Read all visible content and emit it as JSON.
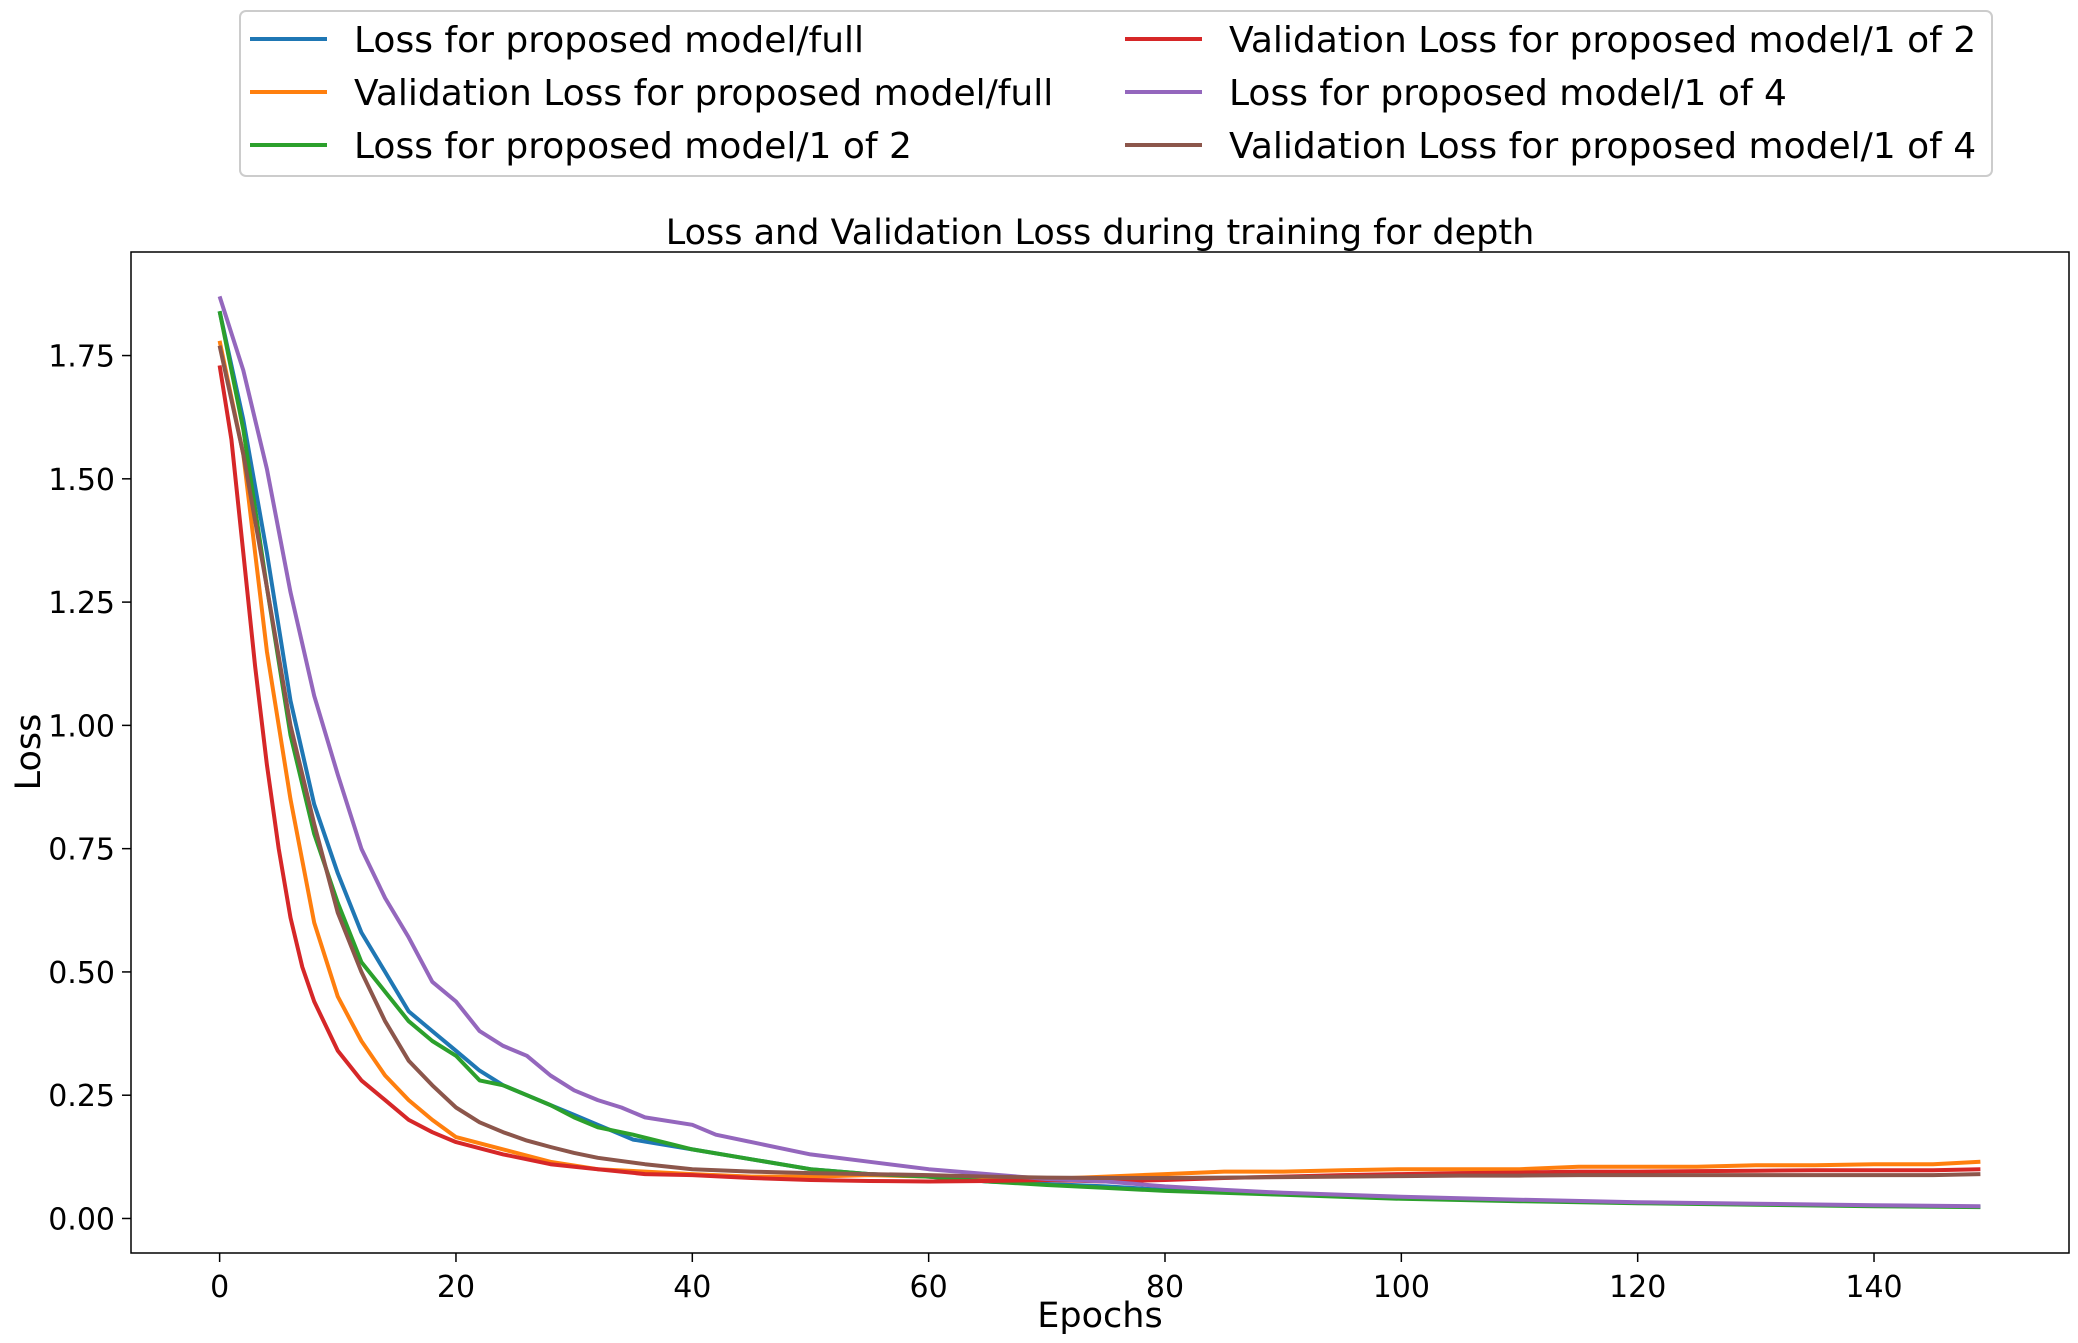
{
  "chart_data": {
    "type": "line",
    "title": "Loss and Validation Loss during training for depth",
    "xlabel": "Epochs",
    "ylabel": "Loss",
    "xlim": [
      -7.5,
      156.5
    ],
    "ylim": [
      -0.07,
      1.96
    ],
    "xticks": [
      0,
      20,
      40,
      60,
      80,
      100,
      120,
      140
    ],
    "yticks": [
      0.0,
      0.25,
      0.5,
      0.75,
      1.0,
      1.25,
      1.5,
      1.75
    ],
    "ytick_labels": [
      "0.00",
      "0.25",
      "0.50",
      "0.75",
      "1.00",
      "1.25",
      "1.50",
      "1.75"
    ],
    "grid": false,
    "legend_placement": "above plot, two columns",
    "series": [
      {
        "name": "Loss for proposed model/full",
        "color": "#1f77b4",
        "points": [
          [
            0,
            1.84
          ],
          [
            2,
            1.62
          ],
          [
            4,
            1.35
          ],
          [
            6,
            1.05
          ],
          [
            8,
            0.84
          ],
          [
            10,
            0.7
          ],
          [
            12,
            0.58
          ],
          [
            14,
            0.5
          ],
          [
            16,
            0.42
          ],
          [
            18,
            0.38
          ],
          [
            20,
            0.34
          ],
          [
            22,
            0.3
          ],
          [
            24,
            0.27
          ],
          [
            26,
            0.25
          ],
          [
            28,
            0.23
          ],
          [
            30,
            0.21
          ],
          [
            32,
            0.19
          ],
          [
            35,
            0.16
          ],
          [
            40,
            0.14
          ],
          [
            45,
            0.12
          ],
          [
            50,
            0.1
          ],
          [
            55,
            0.09
          ],
          [
            60,
            0.085
          ],
          [
            65,
            0.075
          ],
          [
            70,
            0.07
          ],
          [
            75,
            0.065
          ],
          [
            80,
            0.058
          ],
          [
            90,
            0.05
          ],
          [
            100,
            0.042
          ],
          [
            110,
            0.036
          ],
          [
            120,
            0.032
          ],
          [
            130,
            0.029
          ],
          [
            140,
            0.026
          ],
          [
            149,
            0.024
          ]
        ]
      },
      {
        "name": "Validation Loss for proposed model/full",
        "color": "#ff7f0e",
        "points": [
          [
            0,
            1.78
          ],
          [
            2,
            1.55
          ],
          [
            4,
            1.15
          ],
          [
            6,
            0.85
          ],
          [
            8,
            0.6
          ],
          [
            10,
            0.45
          ],
          [
            12,
            0.36
          ],
          [
            14,
            0.29
          ],
          [
            16,
            0.24
          ],
          [
            18,
            0.2
          ],
          [
            20,
            0.165
          ],
          [
            24,
            0.14
          ],
          [
            28,
            0.115
          ],
          [
            32,
            0.1
          ],
          [
            36,
            0.095
          ],
          [
            40,
            0.09
          ],
          [
            45,
            0.085
          ],
          [
            50,
            0.085
          ],
          [
            55,
            0.088
          ],
          [
            60,
            0.085
          ],
          [
            65,
            0.08
          ],
          [
            70,
            0.08
          ],
          [
            75,
            0.085
          ],
          [
            80,
            0.09
          ],
          [
            85,
            0.095
          ],
          [
            90,
            0.095
          ],
          [
            95,
            0.098
          ],
          [
            100,
            0.1
          ],
          [
            105,
            0.1
          ],
          [
            110,
            0.1
          ],
          [
            115,
            0.105
          ],
          [
            120,
            0.105
          ],
          [
            125,
            0.105
          ],
          [
            130,
            0.108
          ],
          [
            135,
            0.108
          ],
          [
            140,
            0.11
          ],
          [
            145,
            0.11
          ],
          [
            149,
            0.115
          ]
        ]
      },
      {
        "name": "Loss for proposed model/1 of 2",
        "color": "#2ca02c",
        "points": [
          [
            0,
            1.84
          ],
          [
            2,
            1.6
          ],
          [
            4,
            1.28
          ],
          [
            6,
            0.98
          ],
          [
            8,
            0.78
          ],
          [
            10,
            0.64
          ],
          [
            12,
            0.52
          ],
          [
            14,
            0.46
          ],
          [
            16,
            0.4
          ],
          [
            18,
            0.36
          ],
          [
            20,
            0.33
          ],
          [
            22,
            0.28
          ],
          [
            24,
            0.27
          ],
          [
            26,
            0.25
          ],
          [
            28,
            0.23
          ],
          [
            30,
            0.205
          ],
          [
            32,
            0.185
          ],
          [
            35,
            0.17
          ],
          [
            40,
            0.14
          ],
          [
            45,
            0.12
          ],
          [
            50,
            0.1
          ],
          [
            55,
            0.09
          ],
          [
            60,
            0.085
          ],
          [
            65,
            0.075
          ],
          [
            70,
            0.068
          ],
          [
            75,
            0.062
          ],
          [
            80,
            0.056
          ],
          [
            90,
            0.048
          ],
          [
            100,
            0.04
          ],
          [
            110,
            0.035
          ],
          [
            120,
            0.031
          ],
          [
            130,
            0.028
          ],
          [
            140,
            0.025
          ],
          [
            149,
            0.023
          ]
        ]
      },
      {
        "name": "Validation Loss for proposed model/1 of 2",
        "color": "#d62728",
        "points": [
          [
            0,
            1.73
          ],
          [
            1,
            1.58
          ],
          [
            2,
            1.35
          ],
          [
            3,
            1.12
          ],
          [
            4,
            0.92
          ],
          [
            5,
            0.75
          ],
          [
            6,
            0.61
          ],
          [
            7,
            0.51
          ],
          [
            8,
            0.44
          ],
          [
            10,
            0.34
          ],
          [
            12,
            0.28
          ],
          [
            14,
            0.24
          ],
          [
            16,
            0.2
          ],
          [
            18,
            0.175
          ],
          [
            20,
            0.155
          ],
          [
            24,
            0.13
          ],
          [
            28,
            0.11
          ],
          [
            32,
            0.1
          ],
          [
            36,
            0.09
          ],
          [
            40,
            0.088
          ],
          [
            45,
            0.082
          ],
          [
            50,
            0.078
          ],
          [
            55,
            0.076
          ],
          [
            60,
            0.075
          ],
          [
            65,
            0.076
          ],
          [
            70,
            0.078
          ],
          [
            75,
            0.075
          ],
          [
            80,
            0.078
          ],
          [
            85,
            0.082
          ],
          [
            90,
            0.085
          ],
          [
            95,
            0.088
          ],
          [
            100,
            0.09
          ],
          [
            105,
            0.092
          ],
          [
            110,
            0.093
          ],
          [
            115,
            0.095
          ],
          [
            120,
            0.095
          ],
          [
            125,
            0.096
          ],
          [
            130,
            0.097
          ],
          [
            135,
            0.098
          ],
          [
            140,
            0.098
          ],
          [
            145,
            0.098
          ],
          [
            149,
            0.1
          ]
        ]
      },
      {
        "name": "Loss for proposed model/1 of 4",
        "color": "#9467bd",
        "points": [
          [
            0,
            1.87
          ],
          [
            2,
            1.72
          ],
          [
            4,
            1.52
          ],
          [
            6,
            1.27
          ],
          [
            8,
            1.06
          ],
          [
            10,
            0.9
          ],
          [
            12,
            0.75
          ],
          [
            14,
            0.65
          ],
          [
            16,
            0.57
          ],
          [
            18,
            0.48
          ],
          [
            20,
            0.44
          ],
          [
            22,
            0.38
          ],
          [
            24,
            0.35
          ],
          [
            26,
            0.33
          ],
          [
            28,
            0.29
          ],
          [
            30,
            0.26
          ],
          [
            32,
            0.24
          ],
          [
            34,
            0.225
          ],
          [
            36,
            0.205
          ],
          [
            40,
            0.19
          ],
          [
            42,
            0.17
          ],
          [
            45,
            0.155
          ],
          [
            50,
            0.13
          ],
          [
            55,
            0.115
          ],
          [
            60,
            0.1
          ],
          [
            65,
            0.09
          ],
          [
            70,
            0.08
          ],
          [
            75,
            0.075
          ],
          [
            80,
            0.065
          ],
          [
            85,
            0.058
          ],
          [
            90,
            0.052
          ],
          [
            95,
            0.048
          ],
          [
            100,
            0.044
          ],
          [
            110,
            0.038
          ],
          [
            120,
            0.033
          ],
          [
            130,
            0.03
          ],
          [
            140,
            0.027
          ],
          [
            149,
            0.025
          ]
        ]
      },
      {
        "name": "Validation Loss for proposed model/1 of 4",
        "color": "#8c564b",
        "points": [
          [
            0,
            1.77
          ],
          [
            2,
            1.55
          ],
          [
            4,
            1.28
          ],
          [
            6,
            1.0
          ],
          [
            8,
            0.8
          ],
          [
            10,
            0.62
          ],
          [
            12,
            0.5
          ],
          [
            14,
            0.4
          ],
          [
            16,
            0.32
          ],
          [
            18,
            0.27
          ],
          [
            20,
            0.225
          ],
          [
            22,
            0.195
          ],
          [
            24,
            0.175
          ],
          [
            26,
            0.158
          ],
          [
            28,
            0.145
          ],
          [
            30,
            0.133
          ],
          [
            32,
            0.123
          ],
          [
            36,
            0.11
          ],
          [
            40,
            0.1
          ],
          [
            45,
            0.095
          ],
          [
            50,
            0.092
          ],
          [
            55,
            0.09
          ],
          [
            60,
            0.088
          ],
          [
            65,
            0.085
          ],
          [
            70,
            0.083
          ],
          [
            75,
            0.082
          ],
          [
            80,
            0.082
          ],
          [
            85,
            0.083
          ],
          [
            90,
            0.084
          ],
          [
            95,
            0.085
          ],
          [
            100,
            0.086
          ],
          [
            105,
            0.087
          ],
          [
            110,
            0.087
          ],
          [
            115,
            0.088
          ],
          [
            120,
            0.088
          ],
          [
            125,
            0.088
          ],
          [
            130,
            0.088
          ],
          [
            135,
            0.088
          ],
          [
            140,
            0.088
          ],
          [
            145,
            0.088
          ],
          [
            149,
            0.09
          ]
        ]
      }
    ]
  }
}
